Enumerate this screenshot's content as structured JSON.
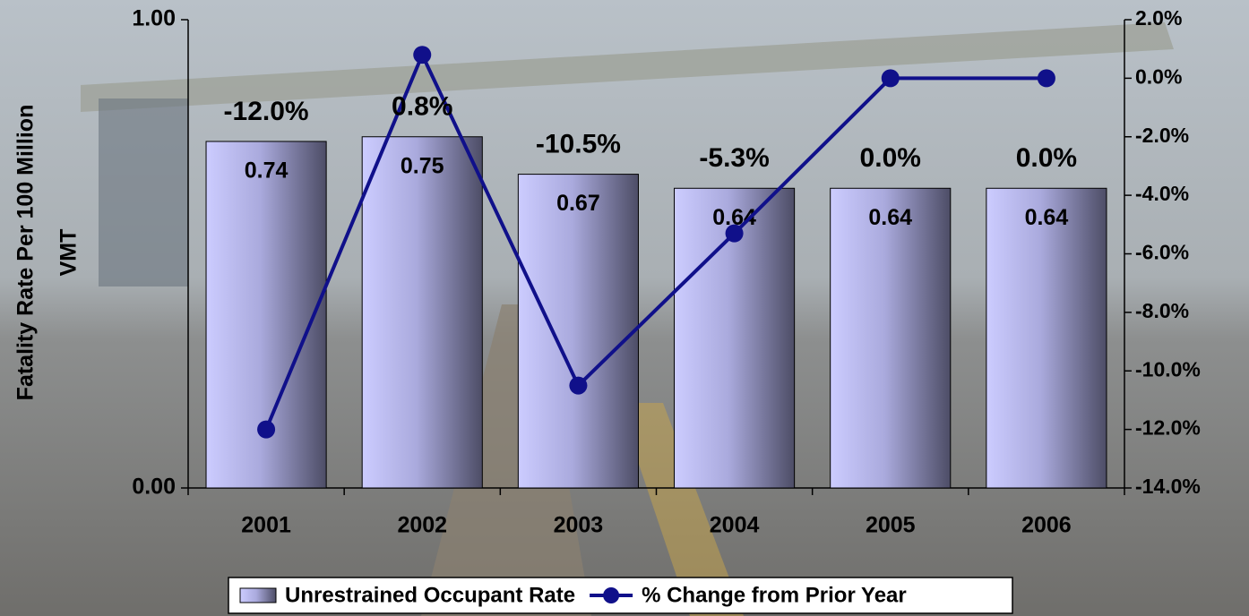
{
  "chart_data": {
    "type": "bar-line",
    "ylabel": [
      "Fatality Rate Per 100 Million",
      "VMT"
    ],
    "categories": [
      "2001",
      "2002",
      "2003",
      "2004",
      "2005",
      "2006"
    ],
    "series": [
      {
        "name": "Unrestrained Occupant Rate",
        "type": "bar",
        "color": "#ccccff",
        "values": [
          0.74,
          0.75,
          0.67,
          0.64,
          0.64,
          0.64
        ]
      },
      {
        "name": "% Change from Prior Year",
        "type": "line",
        "axis": "y2",
        "color": "#10108a",
        "values": [
          -12.0,
          0.8,
          -10.5,
          -5.3,
          0.0,
          0.0
        ],
        "value_labels": [
          "-12.0%",
          "0.8%",
          "-10.5%",
          "-5.3%",
          "0.0%",
          "0.0%"
        ]
      }
    ],
    "ylim": [
      0,
      1
    ],
    "yticks": [
      {
        "value": 0,
        "label": "0.00"
      },
      {
        "value": 1,
        "label": "1.00"
      }
    ],
    "y2lim": [
      -14,
      2
    ],
    "y2ticks": [
      {
        "value": -14,
        "label": "-14.0%"
      },
      {
        "value": -12,
        "label": "-12.0%"
      },
      {
        "value": -10,
        "label": "-10.0%"
      },
      {
        "value": -8,
        "label": "-8.0%"
      },
      {
        "value": -6,
        "label": "-6.0%"
      },
      {
        "value": -4,
        "label": "-4.0%"
      },
      {
        "value": -2,
        "label": "-2.0%"
      },
      {
        "value": 0,
        "label": "0.0%"
      },
      {
        "value": 2,
        "label": "2.0%"
      }
    ],
    "legend": "bottom"
  }
}
